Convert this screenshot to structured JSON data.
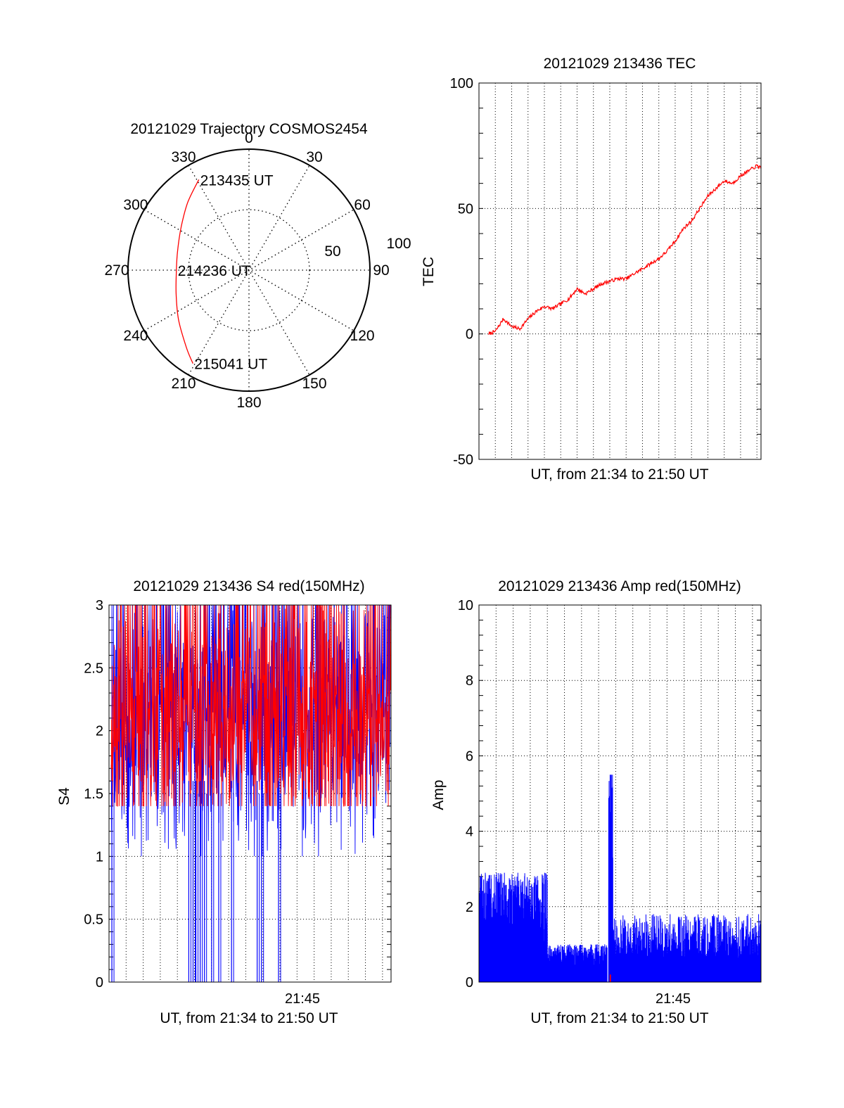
{
  "colors": {
    "red": "#ff0000",
    "blue": "#0000ff",
    "axis": "#000000",
    "grid": "#000000"
  },
  "chart_data": [
    {
      "id": "trajectory",
      "type": "polar",
      "title": "20121029 Trajectory COSMOS2454",
      "angle_labels": [
        "0",
        "30",
        "60",
        "90",
        "120",
        "150",
        "180",
        "210",
        "240",
        "270",
        "300",
        "330"
      ],
      "radial_ticks": [
        "50",
        "100"
      ],
      "rlim": [
        0,
        100
      ],
      "grid": true,
      "series": [
        {
          "color": "#ff0000",
          "points": [
            {
              "az": 331,
              "el": 13
            },
            {
              "az": 318,
              "el": 22
            },
            {
              "az": 303,
              "el": 30
            },
            {
              "az": 285,
              "el": 35
            },
            {
              "az": 270,
              "el": 36
            },
            {
              "az": 252,
              "el": 33
            },
            {
              "az": 235,
              "el": 26
            },
            {
              "az": 219,
              "el": 16
            },
            {
              "az": 211,
              "el": 9
            }
          ]
        }
      ],
      "point_labels": [
        {
          "text": "213435 UT",
          "az": 331,
          "el": 13
        },
        {
          "text": "214236 UT",
          "az": 270,
          "el": 36
        },
        {
          "text": "215041 UT",
          "az": 211,
          "el": 9
        }
      ]
    },
    {
      "id": "tec",
      "type": "line",
      "title": "20121029 213436 TEC",
      "xlabel": "UT, from 21:34 to 21:50 UT",
      "ylabel": "TEC",
      "xlim": [
        "21:33:00",
        "21:50:15"
      ],
      "ylim": [
        -50,
        100
      ],
      "yticks": [
        "-50",
        "0",
        "50",
        "100"
      ],
      "grid": true,
      "series": [
        {
          "color": "#ff0000",
          "x": [
            "21:33:36",
            "21:34:00",
            "21:34:30",
            "21:35:00",
            "21:35:30",
            "21:36:00",
            "21:36:30",
            "21:37:00",
            "21:37:30",
            "21:38:00",
            "21:38:30",
            "21:39:00",
            "21:39:30",
            "21:40:00",
            "21:40:30",
            "21:41:00",
            "21:41:30",
            "21:42:00",
            "21:42:30",
            "21:43:00",
            "21:43:30",
            "21:44:00",
            "21:44:30",
            "21:45:00",
            "21:45:30",
            "21:46:00",
            "21:46:30",
            "21:47:00",
            "21:47:30",
            "21:48:00",
            "21:48:30",
            "21:49:00",
            "21:49:30",
            "21:50:00",
            "21:50:15"
          ],
          "y": [
            0,
            1,
            6,
            3,
            2,
            6,
            9,
            11,
            10,
            12,
            14,
            18,
            16,
            18,
            20,
            21,
            22,
            22,
            24,
            26,
            28,
            30,
            33,
            37,
            42,
            45,
            50,
            55,
            58,
            61,
            60,
            63,
            65,
            67,
            66
          ]
        }
      ]
    },
    {
      "id": "s4",
      "type": "line",
      "title": "20121029 213436 S4 red(150MHz)",
      "xlabel": "UT, from 21:34 to 21:50 UT",
      "ylabel": "S4",
      "xlim": [
        "21:34:00",
        "21:50:30"
      ],
      "ylim": [
        0,
        3
      ],
      "yticks": [
        "0",
        "0.5",
        "1",
        "1.5",
        "2",
        "2.5",
        "3"
      ],
      "xtick_labels": [
        {
          "x": "21:45:00",
          "text": "21:45"
        }
      ],
      "grid": true,
      "series": [
        {
          "color": "#0000ff",
          "range": [
            1.0,
            3.0
          ],
          "mean": 2.05,
          "dropouts_x": [
            "21:34:10",
            "21:38:40",
            "21:38:55",
            "21:39:05",
            "21:39:20",
            "21:39:35",
            "21:40:00",
            "21:40:25",
            "21:41:10",
            "21:42:40",
            "21:42:55",
            "21:43:55"
          ]
        },
        {
          "color": "#ff0000",
          "range": [
            1.4,
            3.0
          ],
          "mean": 2.05
        }
      ]
    },
    {
      "id": "amp",
      "type": "line",
      "title": "20121029 213436 Amp red(150MHz)",
      "xlabel": "UT, from 21:34 to 21:50 UT",
      "ylabel": "Amp",
      "xlim": [
        "21:34:00",
        "21:50:30"
      ],
      "ylim": [
        0,
        10
      ],
      "yticks": [
        "0",
        "2",
        "4",
        "6",
        "8",
        "10"
      ],
      "xtick_labels": [
        {
          "x": "21:45:00",
          "text": "21:45"
        }
      ],
      "grid": true,
      "series": [
        {
          "color": "#0000ff",
          "segments": [
            {
              "from": "21:34:00",
              "to": "21:38:00",
              "range": [
                0,
                2.9
              ]
            },
            {
              "from": "21:38:00",
              "to": "21:41:30",
              "range": [
                0,
                1.0
              ]
            },
            {
              "from": "21:41:35",
              "to": "21:41:50",
              "range": [
                0,
                5.5
              ]
            },
            {
              "from": "21:41:50",
              "to": "21:50:30",
              "range": [
                0,
                1.8
              ]
            }
          ]
        },
        {
          "color": "#ff0000",
          "segments": [
            {
              "from": "21:41:40",
              "to": "21:41:42",
              "range": [
                0,
                0.2
              ]
            }
          ]
        }
      ]
    }
  ]
}
